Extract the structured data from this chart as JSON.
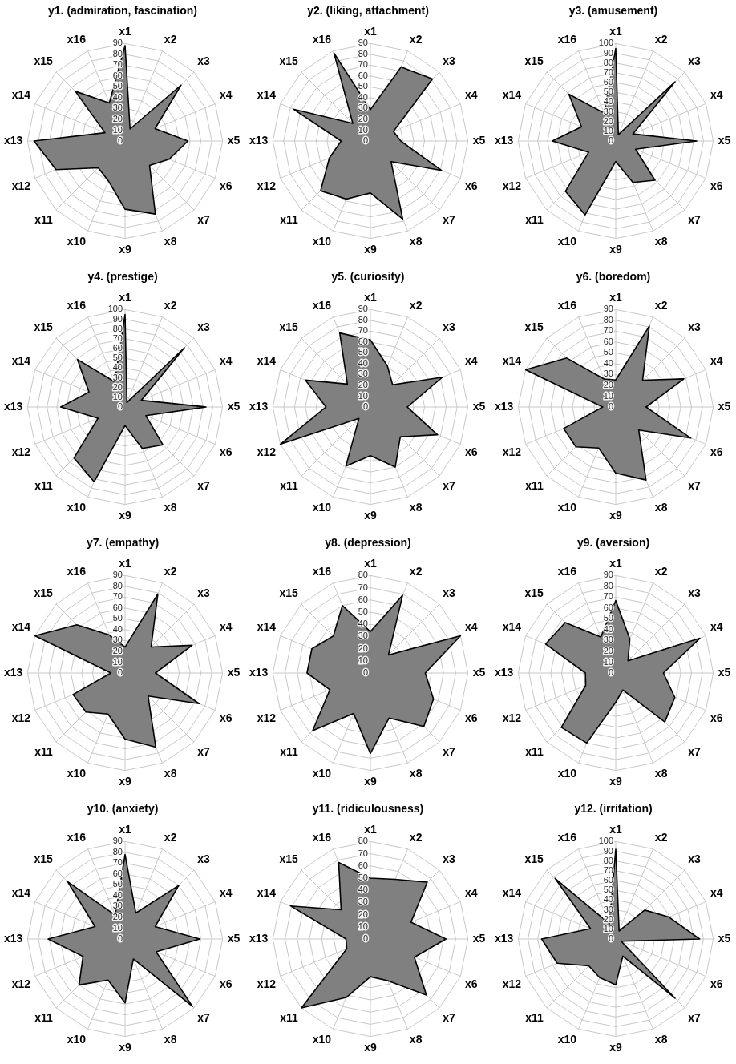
{
  "chart_data": [
    {
      "type": "radar",
      "title": "y1. (admiration, fascination)",
      "categories": [
        "x1",
        "x2",
        "x3",
        "x4",
        "x5",
        "x6",
        "x7",
        "x8",
        "x9",
        "x10",
        "x11",
        "x12",
        "x13",
        "x14",
        "x15",
        "x16"
      ],
      "ylim": [
        0,
        90
      ],
      "yticks": [
        0,
        10,
        20,
        30,
        40,
        50,
        60,
        70,
        80,
        90
      ],
      "grid": true,
      "marker": "none",
      "series": [
        {
          "color": "#808080",
          "values": [
            88,
            12,
            73,
            30,
            58,
            44,
            32,
            73,
            63,
            40,
            35,
            69,
            84,
            20,
            65,
            38
          ]
        }
      ]
    },
    {
      "type": "radar",
      "title": "y2. (liking, attachment)",
      "categories": [
        "x1",
        "x2",
        "x3",
        "x4",
        "x5",
        "x6",
        "x7",
        "x8",
        "x9",
        "x10",
        "x11",
        "x12",
        "x13",
        "x14",
        "x15",
        "x16"
      ],
      "ylim": [
        0,
        90
      ],
      "yticks": [
        0,
        10,
        20,
        30,
        40,
        50,
        60,
        70,
        80,
        90
      ],
      "grid": true,
      "marker": "none",
      "series": [
        {
          "color": "#808080",
          "values": [
            29,
            74,
            81,
            23,
            28,
            71,
            27,
            78,
            48,
            58,
            65,
            41,
            27,
            77,
            23,
            88
          ]
        }
      ]
    },
    {
      "type": "radar",
      "title": "y3. (amusement)",
      "categories": [
        "x1",
        "x2",
        "x3",
        "x4",
        "x5",
        "x6",
        "x7",
        "x8",
        "x9",
        "x10",
        "x11",
        "x12",
        "x13",
        "x14",
        "x15",
        "x16"
      ],
      "ylim": [
        0,
        100
      ],
      "yticks": [
        0,
        10,
        20,
        30,
        40,
        50,
        60,
        70,
        80,
        90,
        100
      ],
      "grid": true,
      "marker": "none",
      "series": [
        {
          "color": "#808080",
          "values": [
            95,
            7,
            86,
            19,
            83,
            22,
            57,
            46,
            21,
            82,
            73,
            30,
            65,
            38,
            68,
            31
          ]
        }
      ]
    },
    {
      "type": "radar",
      "title": "y4. (prestige)",
      "categories": [
        "x1",
        "x2",
        "x3",
        "x4",
        "x5",
        "x6",
        "x7",
        "x8",
        "x9",
        "x10",
        "x11",
        "x12",
        "x13",
        "x14",
        "x15",
        "x16"
      ],
      "ylim": [
        0,
        100
      ],
      "yticks": [
        0,
        10,
        20,
        30,
        40,
        50,
        60,
        70,
        80,
        90,
        100
      ],
      "grid": true,
      "marker": "none",
      "series": [
        {
          "color": "#808080",
          "values": [
            95,
            5,
            86,
            18,
            83,
            23,
            55,
            46,
            19,
            83,
            74,
            30,
            66,
            40,
            69,
            28
          ]
        }
      ]
    },
    {
      "type": "radar",
      "title": "y5. (curiosity)",
      "categories": [
        "x1",
        "x2",
        "x3",
        "x4",
        "x5",
        "x6",
        "x7",
        "x8",
        "x9",
        "x10",
        "x11",
        "x12",
        "x13",
        "x14",
        "x15",
        "x16"
      ],
      "ylim": [
        0,
        90
      ],
      "yticks": [
        0,
        10,
        20,
        30,
        40,
        50,
        60,
        70,
        80,
        90
      ],
      "grid": true,
      "marker": "none",
      "series": [
        {
          "color": "#808080",
          "values": [
            62,
            41,
            29,
            72,
            34,
            67,
            39,
            60,
            45,
            59,
            15,
            90,
            41,
            65,
            30,
            74
          ]
        }
      ]
    },
    {
      "type": "radar",
      "title": "y6. (boredom)",
      "categories": [
        "x1",
        "x2",
        "x3",
        "x4",
        "x5",
        "x6",
        "x7",
        "x8",
        "x9",
        "x10",
        "x11",
        "x12",
        "x13",
        "x14",
        "x15",
        "x16"
      ],
      "ylim": [
        0,
        90
      ],
      "yticks": [
        0,
        10,
        20,
        30,
        40,
        50,
        60,
        70,
        80,
        90
      ],
      "grid": true,
      "marker": "none",
      "series": [
        {
          "color": "#808080",
          "values": [
            25,
            81,
            35,
            68,
            28,
            75,
            30,
            73,
            61,
            41,
            52,
            52,
            12,
            90,
            64,
            28
          ]
        }
      ]
    },
    {
      "type": "radar",
      "title": "y7. (empathy)",
      "categories": [
        "x1",
        "x2",
        "x3",
        "x4",
        "x5",
        "x6",
        "x7",
        "x8",
        "x9",
        "x10",
        "x11",
        "x12",
        "x13",
        "x14",
        "x15",
        "x16"
      ],
      "ylim": [
        0,
        90
      ],
      "yticks": [
        0,
        10,
        20,
        30,
        40,
        50,
        60,
        70,
        80,
        90
      ],
      "grid": true,
      "marker": "none",
      "series": [
        {
          "color": "#808080",
          "values": [
            24,
            79,
            34,
            67,
            28,
            74,
            30,
            74,
            61,
            41,
            51,
            52,
            13,
            90,
            63,
            38
          ]
        }
      ]
    },
    {
      "type": "radar",
      "title": "y8. (depression)",
      "categories": [
        "x1",
        "x2",
        "x3",
        "x4",
        "x5",
        "x6",
        "x7",
        "x8",
        "x9",
        "x10",
        "x11",
        "x12",
        "x13",
        "x14",
        "x15",
        "x16"
      ],
      "ylim": [
        0,
        80
      ],
      "yticks": [
        0,
        10,
        20,
        30,
        40,
        50,
        60,
        70,
        80
      ],
      "grid": true,
      "marker": "none",
      "series": [
        {
          "color": "#808080",
          "values": [
            34,
            69,
            21,
            80,
            45,
            56,
            62,
            40,
            66,
            36,
            67,
            36,
            52,
            52,
            43,
            60
          ]
        }
      ]
    },
    {
      "type": "radar",
      "title": "y9. (aversion)",
      "categories": [
        "x1",
        "x2",
        "x3",
        "x4",
        "x5",
        "x6",
        "x7",
        "x8",
        "x9",
        "x10",
        "x11",
        "x12",
        "x13",
        "x14",
        "x15",
        "x16"
      ],
      "ylim": [
        0,
        90
      ],
      "yticks": [
        0,
        10,
        20,
        30,
        40,
        50,
        60,
        70,
        80,
        90
      ],
      "grid": true,
      "marker": "none",
      "series": [
        {
          "color": "#808080",
          "values": [
            67,
            34,
            16,
            84,
            44,
            59,
            64,
            17,
            27,
            70,
            71,
            30,
            28,
            70,
            66,
            36
          ]
        }
      ]
    },
    {
      "type": "radar",
      "title": "y10. (anxiety)",
      "categories": [
        "x1",
        "x2",
        "x3",
        "x4",
        "x5",
        "x6",
        "x7",
        "x8",
        "x9",
        "x10",
        "x11",
        "x12",
        "x13",
        "x14",
        "x15",
        "x16"
      ],
      "ylim": [
        0,
        90
      ],
      "yticks": [
        0,
        10,
        20,
        30,
        40,
        50,
        60,
        70,
        80,
        90
      ],
      "grid": true,
      "marker": "none",
      "series": [
        {
          "color": "#808080",
          "values": [
            78,
            26,
            70,
            30,
            69,
            31,
            88,
            20,
            59,
            41,
            60,
            42,
            71,
            30,
            75,
            24
          ]
        }
      ]
    },
    {
      "type": "radar",
      "title": "y11. (ridiculousness)",
      "categories": [
        "x1",
        "x2",
        "x3",
        "x4",
        "x5",
        "x6",
        "x7",
        "x8",
        "x9",
        "x10",
        "x11",
        "x12",
        "x13",
        "x14",
        "x15",
        "x16"
      ],
      "ylim": [
        0,
        80
      ],
      "yticks": [
        0,
        10,
        20,
        30,
        40,
        50,
        60,
        70,
        80
      ],
      "grid": true,
      "marker": "none",
      "series": [
        {
          "color": "#808080",
          "values": [
            50,
            53,
            66,
            36,
            62,
            39,
            65,
            37,
            31,
            52,
            80,
            21,
            20,
            71,
            34,
            68
          ]
        }
      ]
    },
    {
      "type": "radar",
      "title": "y12. (irritation)",
      "categories": [
        "x1",
        "x2",
        "x3",
        "x4",
        "x5",
        "x6",
        "x7",
        "x8",
        "x9",
        "x10",
        "x11",
        "x12",
        "x13",
        "x14",
        "x15",
        "x16"
      ],
      "ylim": [
        0,
        100
      ],
      "yticks": [
        0,
        10,
        20,
        30,
        40,
        50,
        60,
        70,
        80,
        90,
        100
      ],
      "grid": true,
      "marker": "none",
      "series": [
        {
          "color": "#808080",
          "values": [
            92,
            9,
            42,
            59,
            86,
            6,
            86,
            19,
            47,
            43,
            39,
            65,
            76,
            28,
            88,
            17
          ]
        }
      ]
    }
  ]
}
